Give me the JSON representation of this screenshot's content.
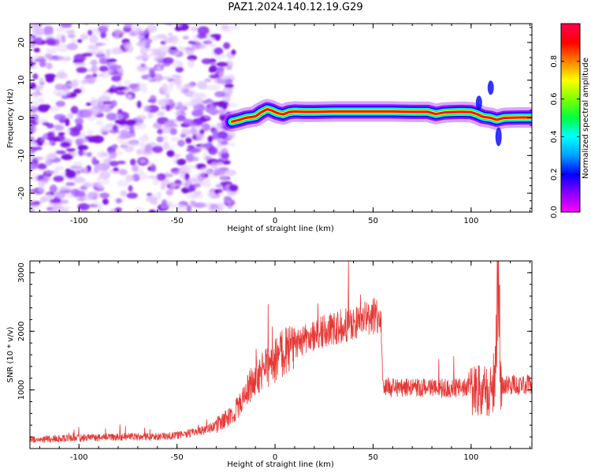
{
  "title": "PAZ1.2024.140.12.19.G29",
  "colors": {
    "snr_line": "#e53935",
    "frame": "#000000"
  },
  "chart_data": [
    {
      "type": "heatmap",
      "xlabel": "Height of straight line (km)",
      "ylabel": "Frequency (Hz)",
      "xlim": [
        -125,
        131
      ],
      "ylim": [
        -25,
        25
      ],
      "xticks": [
        "-100",
        "-50",
        "0",
        "50",
        "100"
      ],
      "yticks": [
        "-20",
        "-10",
        "0",
        "10",
        "20"
      ],
      "colorbar": {
        "label": "Normalized spectral amplitude",
        "range": [
          0,
          1
        ],
        "ticks": [
          "0.0",
          "0.2",
          "0.4",
          "0.6",
          "0.8"
        ],
        "colormap": "gist_rainbow",
        "colors": [
          "#ff00ff",
          "#8b00ff",
          "#0000ff",
          "#00a0ff",
          "#00ffff",
          "#00ff40",
          "#80ff00",
          "#ffff00",
          "#ff8000",
          "#ff0000",
          "#ff0050"
        ]
      },
      "features": {
        "noise_region_km": [
          -125,
          -22
        ],
        "ridge_points": [
          [
            -22,
            -1.0
          ],
          [
            -18,
            -0.5
          ],
          [
            -15,
            0.0
          ],
          [
            -10,
            0.4
          ],
          [
            -7,
            1.5
          ],
          [
            -4,
            2.3
          ],
          [
            -2,
            2.0
          ],
          [
            1,
            1.3
          ],
          [
            4,
            0.9
          ],
          [
            7,
            1.5
          ],
          [
            10,
            1.7
          ],
          [
            15,
            1.6
          ],
          [
            20,
            1.6
          ],
          [
            30,
            1.7
          ],
          [
            40,
            1.7
          ],
          [
            50,
            1.7
          ],
          [
            60,
            1.7
          ],
          [
            70,
            1.6
          ],
          [
            78,
            1.6
          ],
          [
            82,
            1.0
          ],
          [
            86,
            1.4
          ],
          [
            90,
            1.5
          ],
          [
            95,
            1.6
          ],
          [
            100,
            1.5
          ],
          [
            103,
            1.0
          ],
          [
            106,
            0.3
          ],
          [
            110,
            0.0
          ],
          [
            113,
            -0.5
          ],
          [
            117,
            0.0
          ],
          [
            125,
            0.1
          ],
          [
            131,
            0.1
          ]
        ]
      }
    },
    {
      "type": "line",
      "xlabel": "Height of straight line (km)",
      "ylabel": "SNR (10 * v/v)",
      "xlim": [
        -125,
        131
      ],
      "ylim": [
        0,
        3200
      ],
      "xticks": [
        "-100",
        "-50",
        "0",
        "50",
        "100"
      ],
      "yticks": [
        "1000",
        "2000",
        "3000"
      ],
      "series": [
        {
          "x": [
            -125,
            -110,
            -100,
            -90,
            -80,
            -70,
            -60,
            -50,
            -40,
            -35,
            -30,
            -25,
            -20,
            -15,
            -10,
            -5,
            0,
            5,
            10,
            15,
            20,
            25,
            30,
            35,
            40,
            45,
            50,
            54,
            55,
            60,
            70,
            80,
            90,
            100,
            105,
            110,
            112,
            114,
            115,
            116,
            120,
            125,
            131
          ],
          "y": [
            150,
            170,
            180,
            190,
            200,
            200,
            200,
            230,
            280,
            330,
            400,
            500,
            650,
            950,
            1200,
            1350,
            1500,
            1650,
            1750,
            1850,
            1950,
            2000,
            2050,
            2100,
            2150,
            2200,
            2250,
            2300,
            1050,
            1040,
            1030,
            1030,
            1030,
            1030,
            1000,
            1000,
            1200,
            3150,
            1150,
            1100,
            1080,
            1090,
            1100
          ]
        }
      ]
    }
  ]
}
